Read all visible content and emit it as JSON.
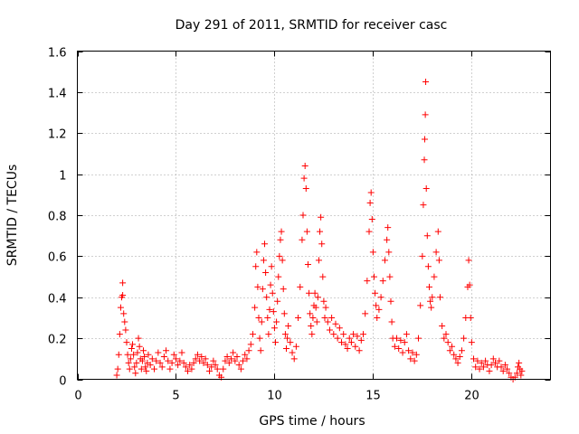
{
  "chart_data": {
    "type": "scatter",
    "title": "Day 291 of 2011, SRMTID for receiver casc",
    "xlabel": "GPS time / hours",
    "ylabel": "SRMTID / TECUs",
    "xlim": [
      0,
      24
    ],
    "ylim": [
      0,
      1.6
    ],
    "xticks": [
      0,
      5,
      10,
      15,
      20
    ],
    "yticks": [
      0,
      0.2,
      0.4,
      0.6,
      0.8,
      1,
      1.2,
      1.4,
      1.6
    ],
    "xtick_labels": [
      "0",
      "5",
      "10",
      "15",
      "20"
    ],
    "ytick_labels": [
      "0",
      "0.2",
      "0.4",
      "0.6",
      "0.8",
      "1",
      "1.2",
      "1.4",
      "1.6"
    ],
    "grid": true,
    "legend": "none",
    "marker": "plus",
    "color": "#ff0000",
    "series": [
      {
        "name": "SRMTID",
        "points": [
          [
            2.0,
            0.02
          ],
          [
            2.05,
            0.05
          ],
          [
            2.1,
            0.12
          ],
          [
            2.15,
            0.22
          ],
          [
            2.2,
            0.35
          ],
          [
            2.25,
            0.4
          ],
          [
            2.3,
            0.47
          ],
          [
            2.3,
            0.41
          ],
          [
            2.35,
            0.32
          ],
          [
            2.4,
            0.28
          ],
          [
            2.45,
            0.24
          ],
          [
            2.5,
            0.18
          ],
          [
            2.55,
            0.12
          ],
          [
            2.6,
            0.08
          ],
          [
            2.65,
            0.05
          ],
          [
            2.7,
            0.1
          ],
          [
            2.75,
            0.15
          ],
          [
            2.8,
            0.17
          ],
          [
            2.85,
            0.12
          ],
          [
            2.9,
            0.06
          ],
          [
            2.95,
            0.03
          ],
          [
            3.0,
            0.08
          ],
          [
            3.05,
            0.13
          ],
          [
            3.1,
            0.2
          ],
          [
            3.15,
            0.16
          ],
          [
            3.2,
            0.1
          ],
          [
            3.25,
            0.05
          ],
          [
            3.3,
            0.09
          ],
          [
            3.35,
            0.14
          ],
          [
            3.4,
            0.11
          ],
          [
            3.45,
            0.06
          ],
          [
            3.5,
            0.04
          ],
          [
            3.55,
            0.08
          ],
          [
            3.6,
            0.12
          ],
          [
            3.7,
            0.07
          ],
          [
            3.8,
            0.1
          ],
          [
            3.9,
            0.05
          ],
          [
            4.0,
            0.09
          ],
          [
            4.1,
            0.13
          ],
          [
            4.2,
            0.08
          ],
          [
            4.3,
            0.06
          ],
          [
            4.4,
            0.11
          ],
          [
            4.5,
            0.14
          ],
          [
            4.6,
            0.09
          ],
          [
            4.7,
            0.05
          ],
          [
            4.8,
            0.08
          ],
          [
            4.9,
            0.12
          ],
          [
            5.0,
            0.1
          ],
          [
            5.1,
            0.07
          ],
          [
            5.2,
            0.09
          ],
          [
            5.3,
            0.13
          ],
          [
            5.4,
            0.08
          ],
          [
            5.5,
            0.06
          ],
          [
            5.6,
            0.04
          ],
          [
            5.7,
            0.07
          ],
          [
            5.8,
            0.05
          ],
          [
            5.9,
            0.08
          ],
          [
            6.0,
            0.1
          ],
          [
            6.1,
            0.12
          ],
          [
            6.2,
            0.09
          ],
          [
            6.3,
            0.11
          ],
          [
            6.4,
            0.08
          ],
          [
            6.5,
            0.1
          ],
          [
            6.6,
            0.07
          ],
          [
            6.7,
            0.04
          ],
          [
            6.8,
            0.06
          ],
          [
            6.9,
            0.09
          ],
          [
            7.0,
            0.07
          ],
          [
            7.1,
            0.05
          ],
          [
            7.2,
            0.02
          ],
          [
            7.3,
            0.01
          ],
          [
            7.4,
            0.05
          ],
          [
            7.5,
            0.09
          ],
          [
            7.6,
            0.11
          ],
          [
            7.7,
            0.08
          ],
          [
            7.8,
            0.1
          ],
          [
            7.9,
            0.13
          ],
          [
            8.0,
            0.09
          ],
          [
            8.1,
            0.11
          ],
          [
            8.2,
            0.07
          ],
          [
            8.3,
            0.05
          ],
          [
            8.4,
            0.09
          ],
          [
            8.5,
            0.12
          ],
          [
            8.6,
            0.1
          ],
          [
            8.7,
            0.14
          ],
          [
            8.8,
            0.17
          ],
          [
            8.9,
            0.22
          ],
          [
            9.0,
            0.35
          ],
          [
            9.05,
            0.55
          ],
          [
            9.1,
            0.62
          ],
          [
            9.15,
            0.45
          ],
          [
            9.2,
            0.3
          ],
          [
            9.25,
            0.2
          ],
          [
            9.3,
            0.14
          ],
          [
            9.35,
            0.28
          ],
          [
            9.4,
            0.44
          ],
          [
            9.45,
            0.58
          ],
          [
            9.5,
            0.66
          ],
          [
            9.55,
            0.52
          ],
          [
            9.6,
            0.4
          ],
          [
            9.65,
            0.3
          ],
          [
            9.7,
            0.22
          ],
          [
            9.75,
            0.34
          ],
          [
            9.8,
            0.46
          ],
          [
            9.85,
            0.55
          ],
          [
            9.9,
            0.42
          ],
          [
            9.95,
            0.33
          ],
          [
            10.0,
            0.25
          ],
          [
            10.05,
            0.18
          ],
          [
            10.1,
            0.28
          ],
          [
            10.15,
            0.38
          ],
          [
            10.2,
            0.5
          ],
          [
            10.25,
            0.6
          ],
          [
            10.3,
            0.68
          ],
          [
            10.35,
            0.72
          ],
          [
            10.4,
            0.58
          ],
          [
            10.45,
            0.44
          ],
          [
            10.5,
            0.32
          ],
          [
            10.55,
            0.22
          ],
          [
            10.6,
            0.15
          ],
          [
            10.65,
            0.2
          ],
          [
            10.7,
            0.26
          ],
          [
            10.8,
            0.18
          ],
          [
            10.9,
            0.13
          ],
          [
            11.0,
            0.1
          ],
          [
            11.1,
            0.16
          ],
          [
            11.2,
            0.3
          ],
          [
            11.3,
            0.45
          ],
          [
            11.4,
            0.68
          ],
          [
            11.45,
            0.8
          ],
          [
            11.5,
            0.98
          ],
          [
            11.55,
            1.04
          ],
          [
            11.6,
            0.93
          ],
          [
            11.65,
            0.72
          ],
          [
            11.7,
            0.56
          ],
          [
            11.75,
            0.42
          ],
          [
            11.8,
            0.32
          ],
          [
            11.85,
            0.26
          ],
          [
            11.9,
            0.22
          ],
          [
            11.95,
            0.3
          ],
          [
            12.0,
            0.36
          ],
          [
            12.05,
            0.42
          ],
          [
            12.1,
            0.35
          ],
          [
            12.15,
            0.28
          ],
          [
            12.2,
            0.4
          ],
          [
            12.25,
            0.58
          ],
          [
            12.3,
            0.72
          ],
          [
            12.35,
            0.79
          ],
          [
            12.4,
            0.66
          ],
          [
            12.45,
            0.5
          ],
          [
            12.5,
            0.38
          ],
          [
            12.55,
            0.3
          ],
          [
            12.6,
            0.35
          ],
          [
            12.7,
            0.28
          ],
          [
            12.8,
            0.24
          ],
          [
            12.9,
            0.3
          ],
          [
            13.0,
            0.22
          ],
          [
            13.1,
            0.27
          ],
          [
            13.2,
            0.2
          ],
          [
            13.3,
            0.25
          ],
          [
            13.4,
            0.18
          ],
          [
            13.5,
            0.22
          ],
          [
            13.6,
            0.17
          ],
          [
            13.7,
            0.15
          ],
          [
            13.8,
            0.2
          ],
          [
            13.9,
            0.18
          ],
          [
            14.0,
            0.22
          ],
          [
            14.1,
            0.16
          ],
          [
            14.2,
            0.21
          ],
          [
            14.3,
            0.14
          ],
          [
            14.4,
            0.19
          ],
          [
            14.5,
            0.22
          ],
          [
            14.6,
            0.32
          ],
          [
            14.7,
            0.48
          ],
          [
            14.8,
            0.72
          ],
          [
            14.85,
            0.86
          ],
          [
            14.9,
            0.91
          ],
          [
            14.95,
            0.78
          ],
          [
            15.0,
            0.62
          ],
          [
            15.05,
            0.5
          ],
          [
            15.1,
            0.42
          ],
          [
            15.15,
            0.36
          ],
          [
            15.2,
            0.3
          ],
          [
            15.3,
            0.34
          ],
          [
            15.4,
            0.4
          ],
          [
            15.5,
            0.48
          ],
          [
            15.6,
            0.58
          ],
          [
            15.7,
            0.68
          ],
          [
            15.75,
            0.74
          ],
          [
            15.8,
            0.62
          ],
          [
            15.85,
            0.5
          ],
          [
            15.9,
            0.38
          ],
          [
            15.95,
            0.28
          ],
          [
            16.0,
            0.2
          ],
          [
            16.1,
            0.16
          ],
          [
            16.2,
            0.2
          ],
          [
            16.3,
            0.15
          ],
          [
            16.4,
            0.19
          ],
          [
            16.5,
            0.13
          ],
          [
            16.6,
            0.18
          ],
          [
            16.7,
            0.22
          ],
          [
            16.8,
            0.14
          ],
          [
            16.9,
            0.1
          ],
          [
            17.0,
            0.13
          ],
          [
            17.1,
            0.09
          ],
          [
            17.2,
            0.12
          ],
          [
            17.3,
            0.2
          ],
          [
            17.4,
            0.36
          ],
          [
            17.5,
            0.6
          ],
          [
            17.55,
            0.85
          ],
          [
            17.6,
            1.07
          ],
          [
            17.62,
            1.17
          ],
          [
            17.65,
            1.29
          ],
          [
            17.67,
            1.45
          ],
          [
            17.7,
            0.93
          ],
          [
            17.75,
            0.7
          ],
          [
            17.8,
            0.55
          ],
          [
            17.85,
            0.45
          ],
          [
            17.9,
            0.38
          ],
          [
            17.95,
            0.35
          ],
          [
            18.0,
            0.4
          ],
          [
            18.1,
            0.5
          ],
          [
            18.2,
            0.62
          ],
          [
            18.3,
            0.72
          ],
          [
            18.35,
            0.58
          ],
          [
            18.4,
            0.4
          ],
          [
            18.5,
            0.26
          ],
          [
            18.6,
            0.2
          ],
          [
            18.7,
            0.22
          ],
          [
            18.8,
            0.18
          ],
          [
            18.9,
            0.14
          ],
          [
            19.0,
            0.16
          ],
          [
            19.1,
            0.12
          ],
          [
            19.2,
            0.1
          ],
          [
            19.3,
            0.08
          ],
          [
            19.4,
            0.11
          ],
          [
            19.5,
            0.14
          ],
          [
            19.6,
            0.2
          ],
          [
            19.7,
            0.3
          ],
          [
            19.8,
            0.45
          ],
          [
            19.85,
            0.58
          ],
          [
            19.9,
            0.46
          ],
          [
            19.95,
            0.3
          ],
          [
            20.0,
            0.18
          ],
          [
            20.1,
            0.1
          ],
          [
            20.2,
            0.06
          ],
          [
            20.3,
            0.09
          ],
          [
            20.4,
            0.05
          ],
          [
            20.5,
            0.08
          ],
          [
            20.6,
            0.06
          ],
          [
            20.7,
            0.09
          ],
          [
            20.8,
            0.07
          ],
          [
            20.9,
            0.04
          ],
          [
            21.0,
            0.07
          ],
          [
            21.1,
            0.1
          ],
          [
            21.2,
            0.08
          ],
          [
            21.3,
            0.06
          ],
          [
            21.4,
            0.09
          ],
          [
            21.5,
            0.06
          ],
          [
            21.6,
            0.04
          ],
          [
            21.7,
            0.07
          ],
          [
            21.8,
            0.05
          ],
          [
            21.9,
            0.03
          ],
          [
            22.0,
            0.01
          ],
          [
            22.1,
            0.0
          ],
          [
            22.2,
            0.01
          ],
          [
            22.3,
            0.03
          ],
          [
            22.35,
            0.06
          ],
          [
            22.4,
            0.08
          ],
          [
            22.45,
            0.05
          ],
          [
            22.5,
            0.02
          ],
          [
            22.55,
            0.04
          ]
        ]
      }
    ]
  }
}
